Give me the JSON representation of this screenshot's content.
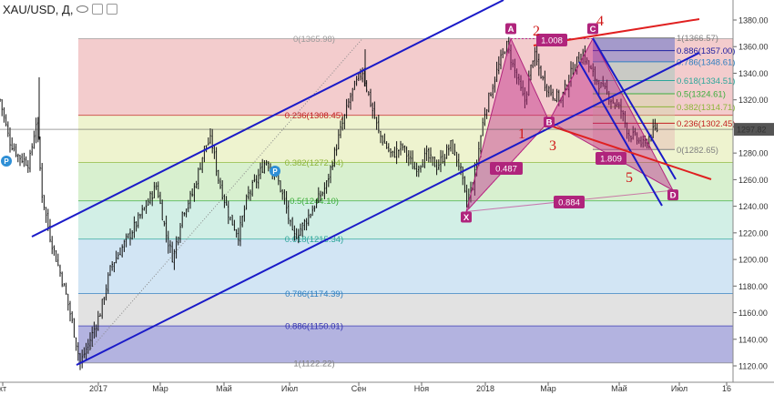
{
  "header": {
    "symbol": "XAU/USD, Д,",
    "icons": [
      "eye-icon",
      "settings-icon",
      "close-icon"
    ]
  },
  "chart_data": {
    "type": "candlestick",
    "x_axis": {
      "ticks": [
        "кт",
        "2017",
        "Мар",
        "Май",
        "Июл",
        "Сен",
        "Ноя",
        "2018",
        "Мар",
        "Май",
        "Июл",
        "16"
      ]
    },
    "y_axis": {
      "range": [
        1112,
        1392
      ],
      "ticks": [
        1120,
        1140,
        1160,
        1180,
        1200,
        1220,
        1240,
        1260,
        1280,
        1300,
        1320,
        1340,
        1360,
        1380
      ]
    },
    "last_price": "1297.82",
    "fib_main": {
      "levels": [
        {
          "label": "0(1365.98)",
          "price": 1365.98,
          "color": "#9a9a9a"
        },
        {
          "label": "0.236(1308.45)",
          "price": 1308.45,
          "color": "#c21f1f"
        },
        {
          "label": "0.382(1272.94)",
          "price": 1272.94,
          "color": "#8db53a"
        },
        {
          "label": "0.5(1244.10)",
          "price": 1244.1,
          "color": "#3cad3c"
        },
        {
          "label": "0.618(1215.34)",
          "price": 1215.34,
          "color": "#2ca69a"
        },
        {
          "label": "0.786(1174.39)",
          "price": 1174.39,
          "color": "#2f7fc0"
        },
        {
          "label": "0.886(1150.01)",
          "price": 1150.01,
          "color": "#3030b0"
        },
        {
          "label": "1(1122.22)",
          "price": 1122.22,
          "color": "#808080"
        }
      ],
      "zone_colors": [
        "#f3cccd",
        "#eef3cf",
        "#d8f0cf",
        "#d2efe6",
        "#d2e5f4",
        "#e2e2e2",
        "#b3b3e0"
      ]
    },
    "fib_small": {
      "levels": [
        {
          "label": "1(1366.57)",
          "price": 1366.57,
          "color": "#808080"
        },
        {
          "label": "0.886(1357.00)",
          "price": 1357.0,
          "color": "#2020a0"
        },
        {
          "label": "0.786(1348.61)",
          "price": 1348.61,
          "color": "#2f7fc0"
        },
        {
          "label": "0.618(1334.51)",
          "price": 1334.51,
          "color": "#2ca69a"
        },
        {
          "label": "0.5(1324.61)",
          "price": 1324.61,
          "color": "#3cad3c"
        },
        {
          "label": "0.382(1314.71)",
          "price": 1314.71,
          "color": "#8db53a"
        },
        {
          "label": "0.236(1302.45)",
          "price": 1302.45,
          "color": "#c21f1f"
        },
        {
          "label": "0(1282.65)",
          "price": 1282.65,
          "color": "#808080"
        }
      ]
    },
    "pattern_points": [
      {
        "label": "X",
        "price": 1236
      },
      {
        "label": "A",
        "price": 1366
      },
      {
        "label": "B",
        "price": 1304
      },
      {
        "label": "C",
        "price": 1366
      },
      {
        "label": "D",
        "price": 1250
      }
    ],
    "ratios": [
      "0.487",
      "1.008",
      "1.809",
      "0.884"
    ],
    "wave_labels": [
      "1",
      "2",
      "3",
      "4",
      "5"
    ],
    "markers": [
      "P",
      "P"
    ]
  }
}
